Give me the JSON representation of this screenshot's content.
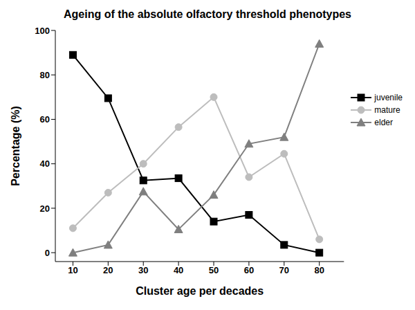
{
  "chart_data": {
    "type": "line",
    "title": "Ageing of the absolute olfactory threshold phenotypes",
    "x_label": "Cluster age per decades",
    "y_label": "Percentage (%)",
    "x": [
      10,
      20,
      30,
      40,
      50,
      60,
      70,
      80
    ],
    "series": [
      {
        "name": "juvenile",
        "color": "#000000",
        "marker": "square",
        "values": [
          89,
          69.5,
          32.5,
          33.5,
          14,
          17,
          3.5,
          0
        ]
      },
      {
        "name": "mature",
        "color": "#bdbdbd",
        "marker": "circle",
        "values": [
          11,
          27,
          40,
          56.5,
          70,
          34,
          44.5,
          6
        ]
      },
      {
        "name": "elder",
        "color": "#7f7f7f",
        "marker": "triangle",
        "values": [
          0,
          3.5,
          27.5,
          10.5,
          26,
          49,
          52,
          94
        ]
      }
    ],
    "xlim": [
      5,
      87
    ],
    "xticks": [
      10,
      20,
      30,
      40,
      50,
      60,
      70,
      80
    ],
    "ylim": [
      -4,
      100
    ],
    "yticks": [
      0,
      20,
      40,
      60,
      80,
      100
    ],
    "grid": false,
    "legend": "upper right"
  }
}
